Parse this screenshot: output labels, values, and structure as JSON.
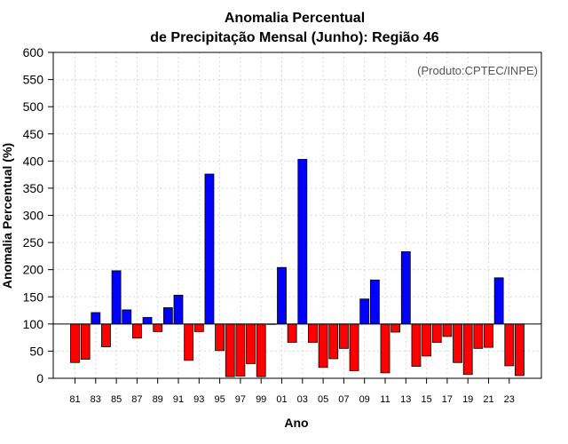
{
  "chart_data": {
    "type": "bar",
    "title_line1": "Anomalia Percentual",
    "title_line2": "de Precipitação Mensal (Junho): Região 46",
    "source_note": "(Produto:CPTEC/INPE)",
    "xlabel": "Ano",
    "ylabel": "Anomalia Percentual (%)",
    "ylim": [
      0,
      600
    ],
    "yticks": [
      0,
      50,
      100,
      150,
      200,
      250,
      300,
      350,
      400,
      450,
      500,
      550,
      600
    ],
    "baseline": 100,
    "grid": true,
    "colors": {
      "above": "#0000ff",
      "below": "#ff0000",
      "grid": "#d9d9d9",
      "axis": "#000000"
    },
    "years": [
      "81",
      "82",
      "83",
      "84",
      "85",
      "86",
      "87",
      "88",
      "89",
      "90",
      "91",
      "92",
      "93",
      "94",
      "95",
      "96",
      "97",
      "98",
      "99",
      "00",
      "01",
      "02",
      "03",
      "04",
      "05",
      "06",
      "07",
      "08",
      "09",
      "10",
      "11",
      "12",
      "13",
      "14",
      "15",
      "16",
      "17",
      "18",
      "19",
      "20",
      "21",
      "22",
      "23",
      "24"
    ],
    "x_tick_labels": [
      "81",
      "83",
      "85",
      "87",
      "89",
      "91",
      "93",
      "95",
      "97",
      "99",
      "01",
      "03",
      "05",
      "07",
      "09",
      "11",
      "13",
      "15",
      "17",
      "19",
      "21",
      "23"
    ],
    "values": [
      29,
      35,
      121,
      58,
      198,
      126,
      74,
      112,
      86,
      130,
      153,
      33,
      86,
      376,
      51,
      3,
      4,
      27,
      3,
      100,
      204,
      66,
      403,
      66,
      20,
      36,
      55,
      14,
      146,
      181,
      10,
      85,
      233,
      22,
      41,
      66,
      77,
      29,
      7,
      55,
      57,
      185,
      23,
      5
    ]
  }
}
